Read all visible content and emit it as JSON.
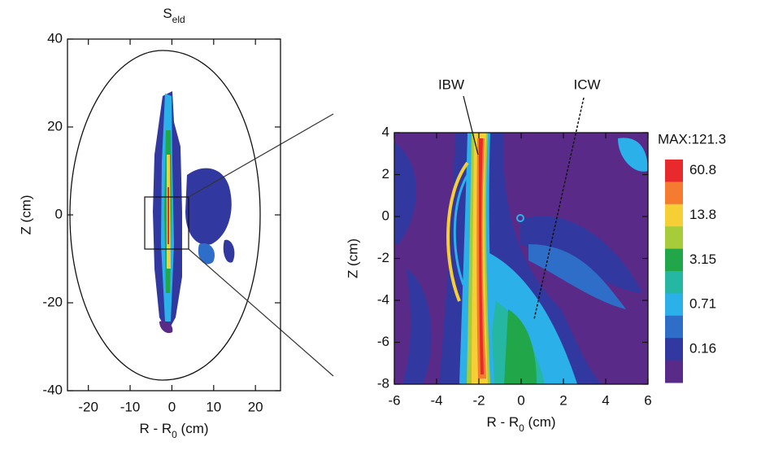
{
  "chart_data": [
    {
      "type": "contour",
      "title": {
        "text": "S",
        "subscript": "eld"
      },
      "xlabel": {
        "text": "R - R",
        "subscript": "0",
        "suffix": " (cm)"
      },
      "ylabel": "Z (cm)",
      "xlim": [
        -25,
        26
      ],
      "ylim": [
        -40,
        40
      ],
      "xticks": [
        -20,
        -10,
        0,
        10,
        20
      ],
      "yticks": [
        -40,
        -20,
        0,
        20,
        40
      ]
    },
    {
      "type": "contour",
      "xlabel": {
        "text": "R - R",
        "subscript": "0",
        "suffix": " (cm)"
      },
      "ylabel": "Z (cm)",
      "xlim": [
        -6,
        6
      ],
      "ylim": [
        -8,
        4
      ],
      "xticks": [
        -6,
        -4,
        -2,
        0,
        2,
        4,
        6
      ],
      "yticks": [
        -8,
        -6,
        -4,
        -2,
        0,
        2,
        4
      ],
      "annotations": [
        "IBW",
        "ICW"
      ],
      "colorbar": {
        "max_label": "MAX:121.3",
        "levels": [
          60.8,
          13.8,
          3.15,
          0.71,
          0.16
        ],
        "colors": [
          "#e82a2c",
          "#f47b30",
          "#f6cf36",
          "#a6cc3a",
          "#22a64a",
          "#25b7a2",
          "#2bb0ea",
          "#2f6ec8",
          "#3139a0",
          "#5a2a88"
        ]
      }
    }
  ]
}
